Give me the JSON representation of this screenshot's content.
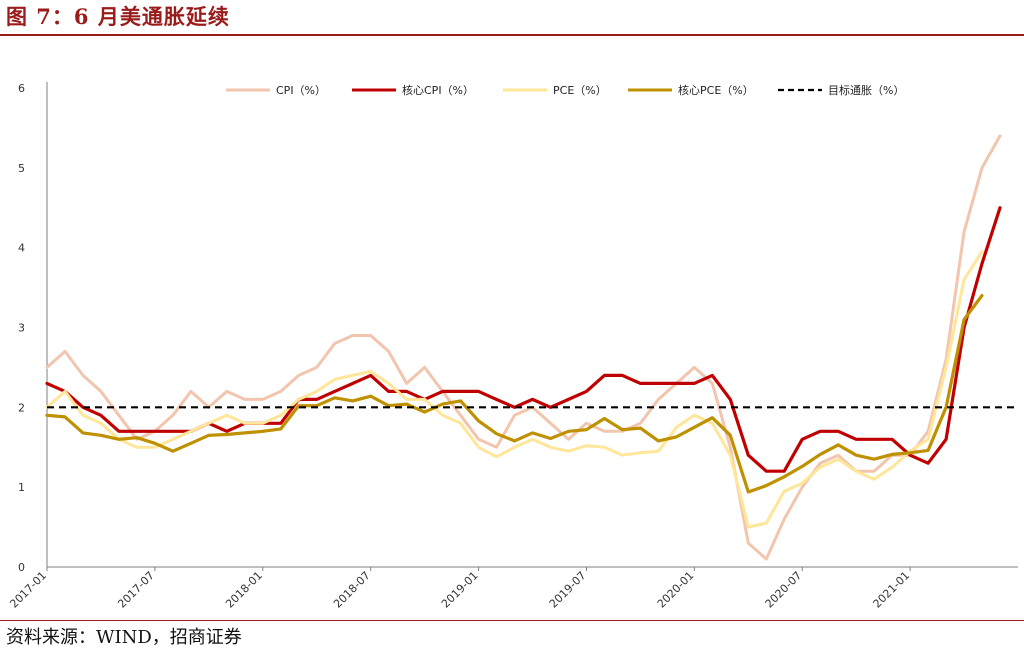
{
  "title": "图 7：6 月美通胀延续",
  "source": "资料来源：WIND，招商证券",
  "colors": {
    "title": "#9B1B1B",
    "cpi": "#F2C5AE",
    "core_cpi": "#C00000",
    "pce": "#FFE699",
    "core_pce": "#BF9000",
    "target": "#000000"
  },
  "chart_data": {
    "type": "line",
    "ylim": [
      0,
      6
    ],
    "yticks": [
      0,
      1,
      2,
      3,
      4,
      5,
      6
    ],
    "x_start": "2017-01",
    "x_end": "2021-06",
    "xticks": [
      "2017-01",
      "2017-07",
      "2018-01",
      "2018-07",
      "2019-01",
      "2019-07",
      "2020-01",
      "2020-07",
      "2021-01"
    ],
    "grid": false,
    "legend_position": "top",
    "series": [
      {
        "name": "CPI（%）",
        "color": "#F2C5AE",
        "style": "solid",
        "values": [
          2.5,
          2.7,
          2.4,
          2.2,
          1.9,
          1.6,
          1.7,
          1.9,
          2.2,
          2.0,
          2.2,
          2.1,
          2.1,
          2.2,
          2.4,
          2.5,
          2.8,
          2.9,
          2.9,
          2.7,
          2.3,
          2.5,
          2.2,
          1.9,
          1.6,
          1.5,
          1.9,
          2.0,
          1.8,
          1.6,
          1.8,
          1.7,
          1.7,
          1.8,
          2.1,
          2.3,
          2.5,
          2.3,
          1.5,
          0.3,
          0.1,
          0.6,
          1.0,
          1.3,
          1.4,
          1.2,
          1.2,
          1.4,
          1.4,
          1.7,
          2.6,
          4.2,
          5.0,
          5.4
        ]
      },
      {
        "name": "核心CPI（%）",
        "color": "#C00000",
        "style": "solid",
        "values": [
          2.3,
          2.2,
          2.0,
          1.9,
          1.7,
          1.7,
          1.7,
          1.7,
          1.7,
          1.8,
          1.7,
          1.8,
          1.8,
          1.8,
          2.1,
          2.1,
          2.2,
          2.3,
          2.4,
          2.2,
          2.2,
          2.1,
          2.2,
          2.2,
          2.2,
          2.1,
          2.0,
          2.1,
          2.0,
          2.1,
          2.2,
          2.4,
          2.4,
          2.3,
          2.3,
          2.3,
          2.3,
          2.4,
          2.1,
          1.4,
          1.2,
          1.2,
          1.6,
          1.7,
          1.7,
          1.6,
          1.6,
          1.6,
          1.4,
          1.3,
          1.6,
          3.0,
          3.8,
          4.5
        ]
      },
      {
        "name": "PCE（%）",
        "color": "#FFE699",
        "style": "solid",
        "values": [
          2.0,
          2.2,
          1.9,
          1.8,
          1.6,
          1.5,
          1.5,
          1.6,
          1.7,
          1.8,
          1.9,
          1.8,
          1.8,
          1.9,
          2.1,
          2.2,
          2.35,
          2.4,
          2.45,
          2.3,
          2.1,
          2.1,
          1.9,
          1.8,
          1.5,
          1.38,
          1.5,
          1.6,
          1.5,
          1.45,
          1.52,
          1.5,
          1.4,
          1.43,
          1.45,
          1.75,
          1.9,
          1.8,
          1.4,
          0.5,
          0.55,
          0.95,
          1.05,
          1.25,
          1.35,
          1.2,
          1.1,
          1.25,
          1.45,
          1.6,
          2.5,
          3.6,
          3.95
        ]
      },
      {
        "name": "核心PCE（%）",
        "color": "#BF9000",
        "style": "solid",
        "values": [
          1.9,
          1.88,
          1.68,
          1.65,
          1.6,
          1.62,
          1.55,
          1.45,
          1.55,
          1.65,
          1.66,
          1.68,
          1.7,
          1.73,
          2.02,
          2.02,
          2.12,
          2.08,
          2.14,
          2.02,
          2.04,
          1.94,
          2.04,
          2.08,
          1.83,
          1.67,
          1.58,
          1.68,
          1.61,
          1.7,
          1.72,
          1.86,
          1.72,
          1.74,
          1.58,
          1.63,
          1.75,
          1.87,
          1.65,
          0.94,
          1.02,
          1.13,
          1.26,
          1.41,
          1.53,
          1.4,
          1.35,
          1.41,
          1.43,
          1.46,
          2.0,
          3.1,
          3.4
        ]
      },
      {
        "name": "目标通胀（%）",
        "color": "#000000",
        "style": "dashed",
        "values": [
          2,
          2
        ]
      }
    ]
  }
}
